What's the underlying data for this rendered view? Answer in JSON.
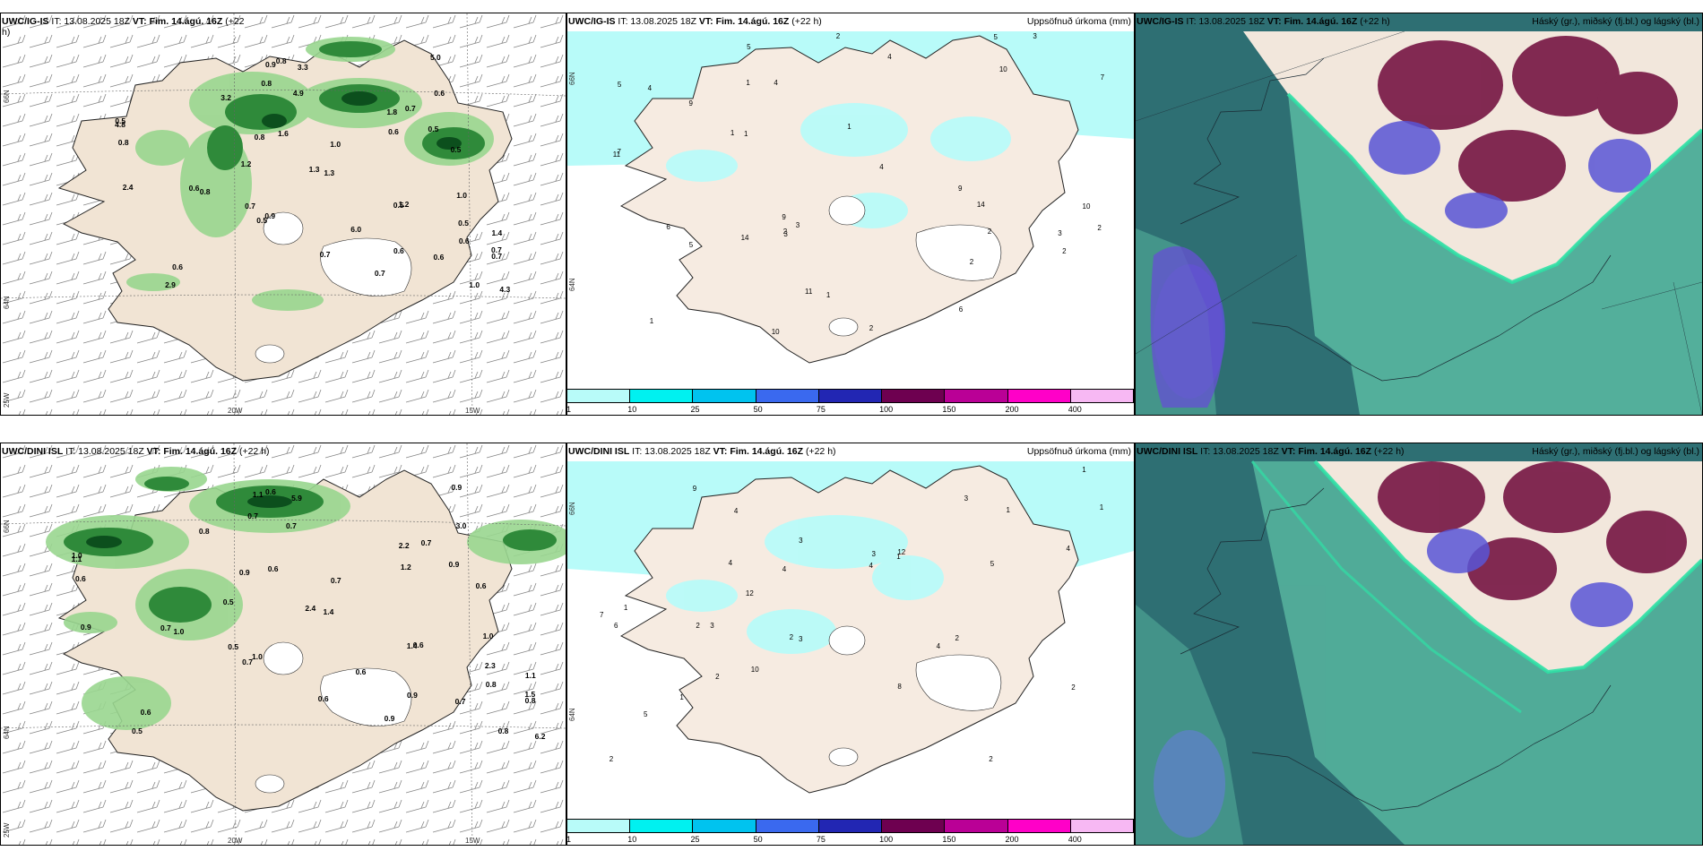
{
  "rows": [
    {
      "model": "UWC/IG-IS",
      "left": {
        "model": "UWC/IG-IS",
        "it": "IT: 13.08.2025 18Z",
        "vt": "VT: Fim. 14.ágú. 16Z",
        "lead": "(+22",
        "lead2": "h)"
      },
      "mid": {
        "model": "UWC/IG-IS",
        "it": "IT: 13.08.2025 18Z",
        "vt": "VT: Fim. 14.ágú. 16Z",
        "lead": "(+22 h)",
        "right": "Uppsöfnuð úrkoma (mm)"
      },
      "right": {
        "model": "UWC/IG-IS",
        "it": "IT: 13.08.2025 18Z",
        "vt": "VT: Fim. 14.ágú. 16Z",
        "lead": "(+22 h)",
        "right": "Háský (gr.), miðský (fj.bl.) og lágský (bl.)"
      }
    },
    {
      "model": "UWC/DINI ISL",
      "left": {
        "model": "UWC/DINI ISL",
        "it": "IT: 13.08.2025 18Z",
        "vt": "VT: Fim. 14.ágú. 16Z",
        "lead": "(+22 h)"
      },
      "mid": {
        "model": "UWC/DINI ISL",
        "it": "IT: 13.08.2025 18Z",
        "vt": "VT: Fim. 14.ágú. 16Z",
        "lead": "(+22 h)",
        "right": "Uppsöfnuð úrkoma (mm)"
      },
      "right": {
        "model": "UWC/DINI ISL",
        "it": "IT: 13.08.2025 18Z",
        "vt": "VT: Fim. 14.ágú. 16Z",
        "lead": "(+22 h)",
        "right": "Háský (gr.), miðský (fj.bl.) og lágský (bl.)"
      }
    }
  ],
  "axis_labels": {
    "lon20": "20W",
    "lon15": "15W",
    "lat66": "66N",
    "lat64": "64N",
    "lon25": "25W"
  },
  "colorbar": {
    "labels": [
      "1",
      "10",
      "25",
      "50",
      "75",
      "100",
      "150",
      "200",
      "400"
    ],
    "colors": [
      "#b8fbf9",
      "#00f1f0",
      "#00c3ef",
      "#3a69ef",
      "#2226b3",
      "#6e0050",
      "#ba0096",
      "#ff00c8",
      "#f7b8f3"
    ]
  },
  "top_left_values": [
    "3.2",
    "1.0",
    "0.8",
    "0.5",
    "1.2",
    "1.3",
    "3.3",
    "4.3",
    "6.0",
    "0.9",
    "0.5",
    "1.0",
    "0.7",
    "2.9",
    "0.6",
    "0.7",
    "1.8",
    "1.6",
    "0.8",
    "2.4",
    "4.8",
    "0.7",
    "4.9",
    "5.0",
    "1.3",
    "1.2",
    "0.6",
    "0.8",
    "1.4",
    "0.8",
    "0.6",
    "0.6",
    "0.6",
    "0.9",
    "1.0",
    "0.5",
    "0.8",
    "0.6",
    "0.7",
    "0.5",
    "0.5",
    "0.7",
    "0.6",
    "0.7",
    "0.5"
  ],
  "top_mid_values": [
    "5",
    "6",
    "10",
    "9",
    "2",
    "7",
    "11",
    "10",
    "10",
    "4",
    "4",
    "11",
    "7",
    "9",
    "14",
    "14",
    "9",
    "5",
    "4",
    "2",
    "3",
    "5",
    "3",
    "2",
    "1",
    "3",
    "4",
    "6",
    "5",
    "1",
    "1",
    "2",
    "3",
    "2",
    "1",
    "2",
    "2",
    "1",
    "1"
  ],
  "bot_left_values": [
    "0.8",
    "0.8",
    "0.6",
    "2.3",
    "0.6",
    "1.4",
    "5.9",
    "6.2",
    "0.6",
    "1.0",
    "1.0",
    "0.7",
    "1.5",
    "0.5",
    "0.9",
    "0.6",
    "2.2",
    "0.6",
    "0.6",
    "0.9",
    "1.1",
    "0.8",
    "0.7",
    "0.9",
    "2.4",
    "0.5",
    "0.6",
    "0.9",
    "1.1",
    "0.7",
    "0.8",
    "1.2",
    "3.0",
    "1.1",
    "1.0",
    "0.9",
    "1.0",
    "0.7",
    "0.9",
    "1.4",
    "0.6",
    "0.7",
    "0.7",
    "0.5",
    "0.7"
  ],
  "bot_mid_values": [
    "1",
    "4",
    "4",
    "4",
    "5",
    "3",
    "8",
    "12",
    "12",
    "10",
    "9",
    "4",
    "7",
    "3",
    "5",
    "6",
    "2",
    "1",
    "3",
    "2",
    "2",
    "3",
    "4",
    "4",
    "3",
    "2",
    "1",
    "1",
    "1",
    "2",
    "2",
    "2",
    "1"
  ]
}
